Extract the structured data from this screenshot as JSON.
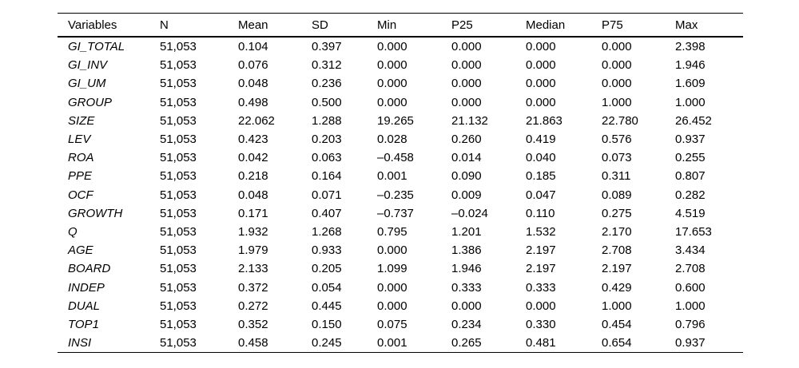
{
  "table": {
    "columns": [
      "Variables",
      "N",
      "Mean",
      "SD",
      "Min",
      "P25",
      "Median",
      "P75",
      "Max"
    ],
    "rows": [
      [
        "GI_TOTAL",
        "51,053",
        "0.104",
        "0.397",
        "0.000",
        "0.000",
        "0.000",
        "0.000",
        "2.398"
      ],
      [
        "GI_INV",
        "51,053",
        "0.076",
        "0.312",
        "0.000",
        "0.000",
        "0.000",
        "0.000",
        "1.946"
      ],
      [
        "GI_UM",
        "51,053",
        "0.048",
        "0.236",
        "0.000",
        "0.000",
        "0.000",
        "0.000",
        "1.609"
      ],
      [
        "GROUP",
        "51,053",
        "0.498",
        "0.500",
        "0.000",
        "0.000",
        "0.000",
        "1.000",
        "1.000"
      ],
      [
        "SIZE",
        "51,053",
        "22.062",
        "1.288",
        "19.265",
        "21.132",
        "21.863",
        "22.780",
        "26.452"
      ],
      [
        "LEV",
        "51,053",
        "0.423",
        "0.203",
        "0.028",
        "0.260",
        "0.419",
        "0.576",
        "0.937"
      ],
      [
        "ROA",
        "51,053",
        "0.042",
        "0.063",
        "–0.458",
        "0.014",
        "0.040",
        "0.073",
        "0.255"
      ],
      [
        "PPE",
        "51,053",
        "0.218",
        "0.164",
        "0.001",
        "0.090",
        "0.185",
        "0.311",
        "0.807"
      ],
      [
        "OCF",
        "51,053",
        "0.048",
        "0.071",
        "–0.235",
        "0.009",
        "0.047",
        "0.089",
        "0.282"
      ],
      [
        "GROWTH",
        "51,053",
        "0.171",
        "0.407",
        "–0.737",
        "–0.024",
        "0.110",
        "0.275",
        "4.519"
      ],
      [
        "Q",
        "51,053",
        "1.932",
        "1.268",
        "0.795",
        "1.201",
        "1.532",
        "2.170",
        "17.653"
      ],
      [
        "AGE",
        "51,053",
        "1.979",
        "0.933",
        "0.000",
        "1.386",
        "2.197",
        "2.708",
        "3.434"
      ],
      [
        "BOARD",
        "51,053",
        "2.133",
        "0.205",
        "1.099",
        "1.946",
        "2.197",
        "2.197",
        "2.708"
      ],
      [
        "INDEP",
        "51,053",
        "0.372",
        "0.054",
        "0.000",
        "0.333",
        "0.333",
        "0.429",
        "0.600"
      ],
      [
        "DUAL",
        "51,053",
        "0.272",
        "0.445",
        "0.000",
        "0.000",
        "0.000",
        "1.000",
        "1.000"
      ],
      [
        "TOP1",
        "51,053",
        "0.352",
        "0.150",
        "0.075",
        "0.234",
        "0.330",
        "0.454",
        "0.796"
      ],
      [
        "INSI",
        "51,053",
        "0.458",
        "0.245",
        "0.001",
        "0.265",
        "0.481",
        "0.654",
        "0.937"
      ]
    ]
  }
}
